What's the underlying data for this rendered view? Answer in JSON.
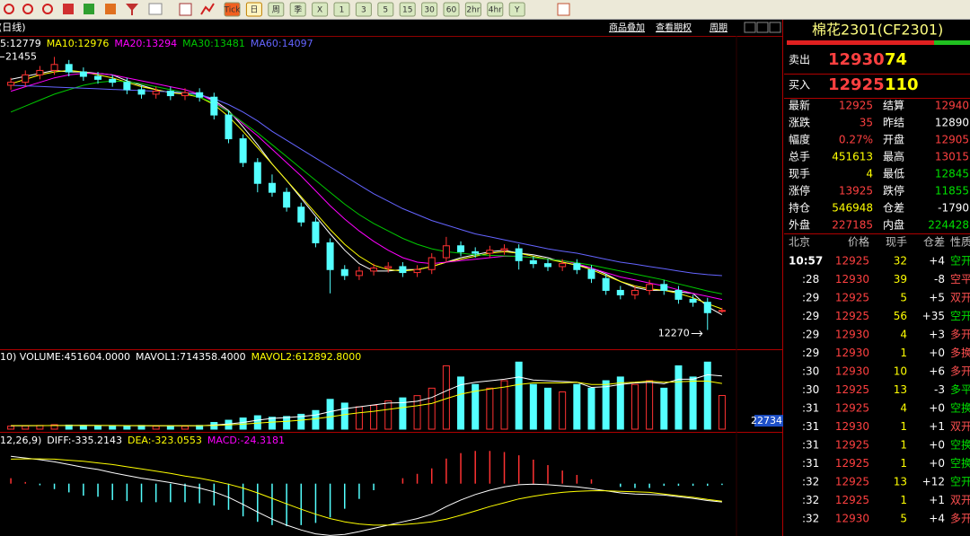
{
  "toolbar": [
    "Tick",
    "日",
    "周",
    "季",
    "X",
    "1",
    "3",
    "5",
    "15",
    "30",
    "60",
    "2hr",
    "4hr",
    "Y"
  ],
  "chart_header": {
    "period": "(日线)",
    "links": [
      "商品叠加",
      "查看期权",
      "周期"
    ]
  },
  "chart_data": [
    {
      "type": "candlestick",
      "open": [
        20500,
        20600,
        20850,
        21000,
        21200,
        20950,
        20800,
        20700,
        20600,
        20350,
        20200,
        20300,
        20150,
        20250,
        20100,
        19500,
        18700,
        17900,
        17200,
        16900,
        16400,
        15900,
        15200,
        14300,
        14100,
        14250,
        14350,
        14400,
        14200,
        14300,
        14700,
        15100,
        14900,
        14850,
        14950,
        15000,
        14600,
        14500,
        14400,
        14500,
        14300,
        14000,
        13600,
        13450,
        13600,
        13800,
        13600,
        13300,
        13200,
        12905
      ],
      "high": [
        20750,
        21000,
        21150,
        21455,
        21350,
        21100,
        20950,
        20850,
        20750,
        20500,
        20450,
        20450,
        20400,
        20400,
        20250,
        19650,
        18850,
        18050,
        17500,
        17050,
        16550,
        16050,
        15350,
        14450,
        14400,
        14500,
        14550,
        14550,
        14450,
        14850,
        15400,
        15250,
        15050,
        15100,
        15150,
        15150,
        14750,
        14650,
        14650,
        14650,
        14450,
        14150,
        13750,
        13750,
        13950,
        13950,
        13750,
        13450,
        13350,
        13015
      ],
      "low": [
        20350,
        20450,
        20700,
        20850,
        20800,
        20650,
        20550,
        20450,
        20200,
        20050,
        20050,
        20000,
        20000,
        19950,
        19350,
        18550,
        17750,
        16900,
        16750,
        16250,
        15750,
        15050,
        13500,
        13950,
        13950,
        14100,
        14200,
        14050,
        14050,
        14150,
        14550,
        14750,
        14700,
        14700,
        14800,
        14300,
        14350,
        14250,
        14250,
        14150,
        13850,
        13450,
        13300,
        13300,
        13450,
        13450,
        13150,
        13050,
        12270,
        12845
      ],
      "close": [
        20600,
        20850,
        21000,
        21200,
        20950,
        20800,
        20700,
        20600,
        20350,
        20200,
        20300,
        20150,
        20250,
        20100,
        19500,
        18700,
        17900,
        17200,
        16900,
        16400,
        15900,
        15200,
        14300,
        14100,
        14250,
        14350,
        14400,
        14200,
        14300,
        14700,
        15100,
        14900,
        14850,
        14950,
        15000,
        14600,
        14500,
        14400,
        14500,
        14300,
        14000,
        13600,
        13450,
        13600,
        13800,
        13600,
        13300,
        13200,
        12850,
        12925
      ],
      "up_color": "#ff3232",
      "down_color": "#54ffff",
      "ylim": [
        11650,
        22100
      ],
      "series": [
        {
          "label": "5:12779",
          "color": "#ffffff",
          "values": [
            20700,
            20800,
            20900,
            21000,
            20950,
            20950,
            20900,
            20850,
            20650,
            20500,
            20350,
            20250,
            20250,
            20200,
            20000,
            19650,
            19100,
            18500,
            17850,
            17300,
            16700,
            16100,
            15500,
            14950,
            14500,
            14250,
            14250,
            14300,
            14300,
            14400,
            14550,
            14700,
            14800,
            14900,
            14950,
            14850,
            14800,
            14700,
            14550,
            14450,
            14350,
            14150,
            13900,
            13700,
            13600,
            13600,
            13550,
            13500,
            13050,
            12779
          ]
        },
        {
          "label": "MA10:12976",
          "color": "#ffff00",
          "values": [
            20550,
            20700,
            20850,
            20950,
            21000,
            20950,
            20850,
            20750,
            20600,
            20450,
            20350,
            20250,
            20200,
            20100,
            19850,
            19450,
            18950,
            18400,
            17850,
            17300,
            16750,
            16200,
            15650,
            15150,
            14750,
            14450,
            14300,
            14250,
            14300,
            14400,
            14550,
            14650,
            14750,
            14850,
            14900,
            14850,
            14750,
            14650,
            14550,
            14450,
            14300,
            14100,
            13900,
            13750,
            13650,
            13600,
            13500,
            13350,
            13150,
            12976
          ]
        },
        {
          "label": "MA20:13294",
          "color": "#ff00ff",
          "values": [
            20300,
            20450,
            20600,
            20750,
            20850,
            20900,
            20900,
            20850,
            20750,
            20650,
            20550,
            20450,
            20350,
            20200,
            19950,
            19600,
            19200,
            18800,
            18350,
            17900,
            17450,
            16950,
            16450,
            16000,
            15600,
            15250,
            14950,
            14700,
            14550,
            14500,
            14550,
            14600,
            14650,
            14700,
            14750,
            14750,
            14700,
            14650,
            14600,
            14500,
            14350,
            14200,
            14050,
            13950,
            13850,
            13750,
            13620,
            13500,
            13400,
            13294
          ]
        },
        {
          "label": "MA30:13481",
          "color": "#00c800",
          "values": [
            19600,
            19800,
            20000,
            20200,
            20350,
            20500,
            20600,
            20640,
            20620,
            20550,
            20450,
            20350,
            20250,
            20100,
            19900,
            19600,
            19250,
            18900,
            18500,
            18100,
            17700,
            17300,
            16900,
            16500,
            16150,
            15850,
            15600,
            15350,
            15150,
            15000,
            14900,
            14850,
            14800,
            14780,
            14760,
            14740,
            14700,
            14650,
            14600,
            14530,
            14450,
            14350,
            14250,
            14150,
            14050,
            13950,
            13820,
            13700,
            13580,
            13481
          ]
        },
        {
          "label": "MA60:14097",
          "color": "#6464ff",
          "values": [
            20500,
            20480,
            20460,
            20440,
            20420,
            20400,
            20380,
            20360,
            20340,
            20320,
            20300,
            20280,
            20250,
            20180,
            20050,
            19850,
            19600,
            19300,
            18950,
            18650,
            18350,
            18050,
            17750,
            17450,
            17150,
            16850,
            16600,
            16350,
            16150,
            15950,
            15800,
            15650,
            15500,
            15400,
            15300,
            15200,
            15100,
            15000,
            14920,
            14850,
            14750,
            14650,
            14550,
            14480,
            14400,
            14330,
            14250,
            14180,
            14130,
            14097
          ]
        }
      ]
    },
    {
      "type": "bar",
      "title": "10) VOLUME:451604.0000",
      "title_color": "#ffffff",
      "values": [
        40000,
        45000,
        50000,
        60000,
        55000,
        50000,
        45000,
        40000,
        45000,
        50000,
        40000,
        45000,
        40000,
        50000,
        90000,
        120000,
        150000,
        180000,
        160000,
        170000,
        200000,
        250000,
        400000,
        350000,
        300000,
        320000,
        380000,
        420000,
        450000,
        550000,
        850000,
        700000,
        600000,
        550000,
        650000,
        900000,
        600000,
        550000,
        500000,
        600000,
        550000,
        650000,
        700000,
        600000,
        650000,
        550000,
        850000,
        700000,
        900000,
        451604
      ],
      "ylim": [
        0,
        1000000
      ],
      "yticks": [
        22734
      ],
      "series": [
        {
          "label": "MAVOL1:714358.4000",
          "color": "#ffffff",
          "values": [
            45000,
            46000,
            47000,
            49000,
            50000,
            52000,
            50000,
            48000,
            47000,
            46000,
            44000,
            44000,
            44000,
            46000,
            55000,
            70000,
            90000,
            120000,
            145000,
            155000,
            170000,
            190000,
            235000,
            275000,
            300000,
            325000,
            350000,
            355000,
            375000,
            425000,
            515000,
            595000,
            630000,
            650000,
            670000,
            700000,
            660000,
            650000,
            640000,
            630000,
            560000,
            570000,
            600000,
            620000,
            630000,
            610000,
            670000,
            670000,
            730000,
            714358.4
          ]
        },
        {
          "label": "MAVOL2:612892.8000",
          "color": "#ffff00",
          "values": [
            48000,
            48000,
            48000,
            48000,
            49000,
            49000,
            49000,
            49000,
            48000,
            48000,
            47000,
            47000,
            47000,
            47000,
            50000,
            57000,
            68000,
            82000,
            95000,
            105000,
            120000,
            140000,
            165000,
            195000,
            220000,
            240000,
            265000,
            290000,
            315000,
            345000,
            410000,
            470000,
            510000,
            540000,
            565000,
            600000,
            620000,
            620000,
            620000,
            630000,
            600000,
            600000,
            620000,
            630000,
            645000,
            630000,
            635000,
            645000,
            645000,
            612892.8
          ]
        }
      ]
    },
    {
      "type": "macd",
      "title": "12,26,9)",
      "title_color": "#ffffff",
      "bar_label": "MACD:-24.3181",
      "bar_label_color": "#ff00ff",
      "values": [
        100,
        30,
        -30,
        -100,
        -160,
        -220,
        -240,
        -300,
        -320,
        -340,
        -340,
        -340,
        -340,
        -360,
        -400,
        -480,
        -600,
        -700,
        -760,
        -780,
        -760,
        -720,
        -620,
        -460,
        -280,
        -120,
        0,
        100,
        180,
        280,
        460,
        560,
        600,
        600,
        580,
        520,
        440,
        340,
        240,
        160,
        80,
        0,
        -60,
        -80,
        -80,
        -40,
        -40,
        -40,
        -40,
        -24.3181
      ],
      "up_color": "#ff3232",
      "down_color": "#54ffff",
      "ylim": [
        -960,
        670
      ],
      "series": [
        {
          "label": "DIFF:-335.2143",
          "color": "#ffffff",
          "values": [
            500,
            470,
            440,
            400,
            350,
            300,
            260,
            200,
            150,
            100,
            60,
            20,
            -30,
            -80,
            -150,
            -250,
            -380,
            -520,
            -650,
            -760,
            -850,
            -920,
            -950,
            -930,
            -880,
            -820,
            -760,
            -700,
            -640,
            -560,
            -420,
            -300,
            -200,
            -120,
            -60,
            -20,
            -10,
            -20,
            -40,
            -60,
            -90,
            -130,
            -170,
            -190,
            -200,
            -210,
            -240,
            -270,
            -310,
            -335.2143
          ]
        },
        {
          "label": "DEA:-323.0553",
          "color": "#ffff00",
          "values": [
            450,
            455,
            455,
            450,
            430,
            410,
            380,
            350,
            310,
            270,
            230,
            190,
            140,
            100,
            50,
            -10,
            -80,
            -170,
            -270,
            -370,
            -470,
            -560,
            -640,
            -700,
            -740,
            -760,
            -760,
            -750,
            -730,
            -700,
            -650,
            -580,
            -500,
            -420,
            -350,
            -280,
            -230,
            -190,
            -160,
            -140,
            -130,
            -130,
            -140,
            -150,
            -160,
            -190,
            -220,
            -250,
            -290,
            -323.0553
          ]
        }
      ]
    }
  ],
  "quote": {
    "title": "棉花2301(CF2301)",
    "book": [
      {
        "label": "卖出",
        "price": 12930,
        "volume": 74
      },
      {
        "label": "买入",
        "price": 12925,
        "volume": 110
      }
    ],
    "stats": [
      {
        "label": "最新",
        "value": 12925,
        "color": "#ff4040"
      },
      {
        "label": "结算",
        "value": 12940,
        "color": "#ff4040"
      },
      {
        "label": "涨跌",
        "value": 35,
        "color": "#ff4040"
      },
      {
        "label": "昨结",
        "value": 12890,
        "color": "#ffffff"
      },
      {
        "label": "幅度",
        "value": "0.27%",
        "color": "#ff4040"
      },
      {
        "label": "开盘",
        "value": 12905,
        "color": "#ff4040"
      },
      {
        "label": "总手",
        "value": 451613,
        "color": "#ffff00"
      },
      {
        "label": "最高",
        "value": 13015,
        "color": "#ff4040"
      },
      {
        "label": "现手",
        "value": 4,
        "color": "#ffff00"
      },
      {
        "label": "最低",
        "value": 12845,
        "color": "#00e000"
      },
      {
        "label": "涨停",
        "value": 13925,
        "color": "#ff4040"
      },
      {
        "label": "跌停",
        "value": 11855,
        "color": "#00e000"
      },
      {
        "label": "持仓",
        "value": 546948,
        "color": "#ffff00"
      },
      {
        "label": "仓差",
        "value": -1790,
        "color": "#ffffff"
      },
      {
        "label": "外盘",
        "value": 227185,
        "color": "#ff4040"
      },
      {
        "label": "内盘",
        "value": 224428,
        "color": "#00e000"
      }
    ]
  },
  "trades": {
    "columns": [
      "北京",
      "价格",
      "现手",
      "仓差",
      "性质"
    ],
    "rows": [
      [
        "10:57",
        12925,
        32,
        "+4",
        "空开"
      ],
      [
        ":28",
        12930,
        39,
        -8,
        "空平"
      ],
      [
        ":29",
        12925,
        5,
        "+5",
        "双开"
      ],
      [
        ":29",
        12925,
        56,
        "+35",
        "空开"
      ],
      [
        ":29",
        12930,
        4,
        "+3",
        "多开"
      ],
      [
        ":29",
        12930,
        1,
        "+0",
        "多换"
      ],
      [
        ":30",
        12930,
        10,
        "+6",
        "多开"
      ],
      [
        ":30",
        12925,
        13,
        -3,
        "多平"
      ],
      [
        ":31",
        12925,
        4,
        "+0",
        "空换"
      ],
      [
        ":31",
        12930,
        1,
        "+1",
        "双开"
      ],
      [
        ":31",
        12925,
        1,
        "+0",
        "空换"
      ],
      [
        ":31",
        12925,
        1,
        "+0",
        "空换"
      ],
      [
        ":32",
        12925,
        13,
        "+12",
        "空开"
      ],
      [
        ":32",
        12925,
        1,
        "+1",
        "双开"
      ],
      [
        ":32",
        12930,
        5,
        "+4",
        "多开"
      ]
    ],
    "nature_colors": [
      "#00e000",
      "#ff5050",
      "#ff5050",
      "#00e000",
      "#ff5050",
      "#ff5050",
      "#ff5050",
      "#00e000",
      "#00e000",
      "#ff5050",
      "#00e000",
      "#00e000",
      "#00e000",
      "#ff5050",
      "#ff5050"
    ]
  }
}
